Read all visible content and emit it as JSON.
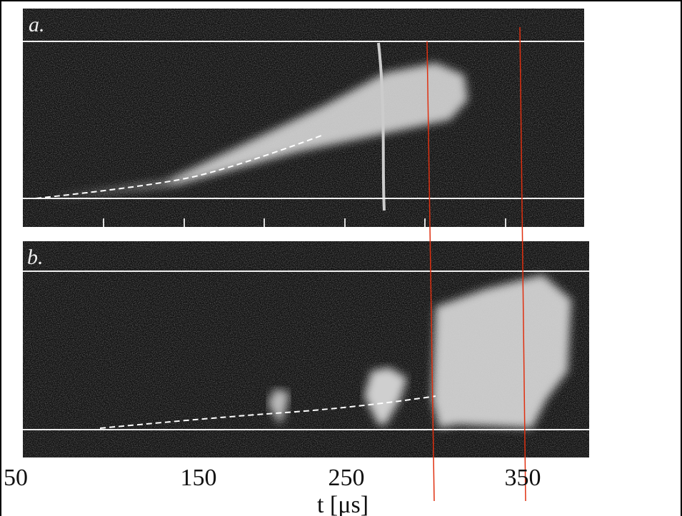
{
  "panels": [
    {
      "label": "a."
    },
    {
      "label": "b."
    }
  ],
  "axis": {
    "tick_labels": [
      "50",
      "150",
      "250",
      "350"
    ],
    "label": "t [μs]"
  }
}
